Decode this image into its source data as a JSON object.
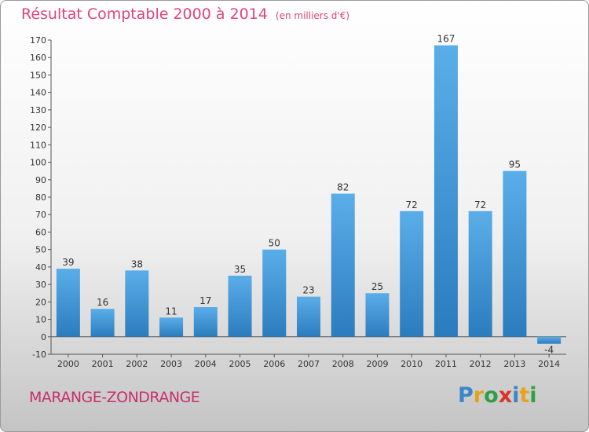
{
  "header": {
    "title": "Résultat Comptable 2000 à 2014",
    "subtitle": "(en milliers d'€)"
  },
  "footer": {
    "commune": "MARANGE-ZONDRANGE",
    "logo_text": "Proxiti"
  },
  "colors": {
    "title": "#e0437a",
    "commune": "#c8306a",
    "bar_top": "#5aaee8",
    "bar_bottom": "#2b7cbe"
  },
  "chart_data": {
    "type": "bar",
    "title": "Résultat Comptable 2000 à 2014",
    "subtitle": "(en milliers d'€)",
    "categories": [
      "2000",
      "2001",
      "2002",
      "2003",
      "2004",
      "2005",
      "2006",
      "2007",
      "2008",
      "2009",
      "2010",
      "2011",
      "2012",
      "2013",
      "2014"
    ],
    "values": [
      39,
      16,
      38,
      11,
      17,
      35,
      50,
      23,
      82,
      25,
      72,
      167,
      72,
      95,
      -4
    ],
    "ylim": [
      -10,
      170
    ],
    "yticks": [
      -10,
      0,
      10,
      20,
      30,
      40,
      50,
      60,
      70,
      80,
      90,
      100,
      110,
      120,
      130,
      140,
      150,
      160,
      170
    ],
    "grid": false,
    "legend": "none"
  }
}
